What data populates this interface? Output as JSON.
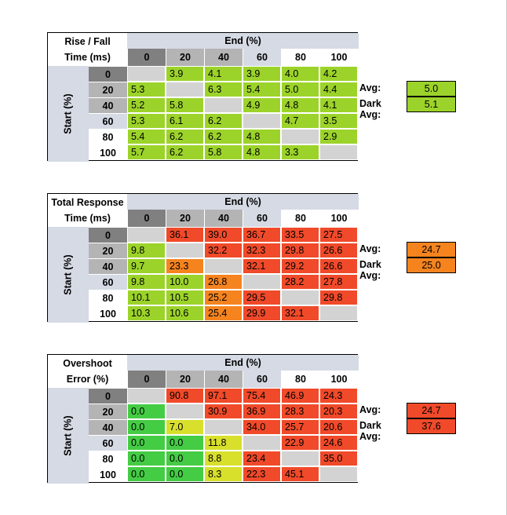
{
  "col_labels": [
    "0",
    "20",
    "40",
    "60",
    "80",
    "100"
  ],
  "row_labels": [
    "0",
    "20",
    "40",
    "60",
    "80",
    "100"
  ],
  "end_header": "End (%)",
  "start_header": "Start (%)",
  "avg_label": "Avg:",
  "dark_avg_label": "Dark Avg:",
  "colors": {
    "header_light": "#d5dae4",
    "header_dark": "#808080",
    "header_mid": "#b4b4b4",
    "diag": "#d3d3d3",
    "green_bright": "#44cc44",
    "green_lime": "#9cd32a",
    "yellow": "#d8e02c",
    "orange": "#f5841f",
    "red": "#f04a2a"
  },
  "tables": [
    {
      "title_line1": "Rise / Fall",
      "title_line2": "Time (ms)",
      "avg": "5.0",
      "dark_avg": "5.1",
      "avg_color": "#9cd32a",
      "rows": [
        [
          null,
          "3.9",
          "4.1",
          "3.9",
          "4.0",
          "4.2"
        ],
        [
          "5.3",
          null,
          "6.3",
          "5.4",
          "5.0",
          "4.4"
        ],
        [
          "5.2",
          "5.8",
          null,
          "4.9",
          "4.8",
          "4.1"
        ],
        [
          "5.3",
          "6.1",
          "6.2",
          null,
          "4.7",
          "3.5"
        ],
        [
          "5.4",
          "6.2",
          "6.2",
          "4.8",
          null,
          "2.9"
        ],
        [
          "5.7",
          "6.2",
          "5.8",
          "4.8",
          "3.3",
          null
        ]
      ],
      "colors": [
        [
          null,
          "#9cd32a",
          "#9cd32a",
          "#9cd32a",
          "#9cd32a",
          "#9cd32a"
        ],
        [
          "#9cd32a",
          null,
          "#9cd32a",
          "#9cd32a",
          "#9cd32a",
          "#9cd32a"
        ],
        [
          "#9cd32a",
          "#9cd32a",
          null,
          "#9cd32a",
          "#9cd32a",
          "#9cd32a"
        ],
        [
          "#9cd32a",
          "#9cd32a",
          "#9cd32a",
          null,
          "#9cd32a",
          "#9cd32a"
        ],
        [
          "#9cd32a",
          "#9cd32a",
          "#9cd32a",
          "#9cd32a",
          null,
          "#9cd32a"
        ],
        [
          "#9cd32a",
          "#9cd32a",
          "#9cd32a",
          "#9cd32a",
          "#9cd32a",
          null
        ]
      ]
    },
    {
      "title_line1": "Total Response",
      "title_line2": "Time (ms)",
      "avg": "24.7",
      "dark_avg": "25.0",
      "avg_color": "#f5841f",
      "rows": [
        [
          null,
          "36.1",
          "39.0",
          "36.7",
          "33.5",
          "27.5"
        ],
        [
          "9.8",
          null,
          "32.2",
          "32.3",
          "29.8",
          "26.6"
        ],
        [
          "9.7",
          "23.3",
          null,
          "32.1",
          "29.2",
          "26.6"
        ],
        [
          "9.8",
          "10.0",
          "26.8",
          null,
          "28.2",
          "27.8"
        ],
        [
          "10.1",
          "10.5",
          "25.2",
          "29.5",
          null,
          "29.8"
        ],
        [
          "10.3",
          "10.6",
          "25.4",
          "29.9",
          "32.1",
          null
        ]
      ],
      "colors": [
        [
          null,
          "#f04a2a",
          "#f04a2a",
          "#f04a2a",
          "#f04a2a",
          "#f04a2a"
        ],
        [
          "#9cd32a",
          null,
          "#f04a2a",
          "#f04a2a",
          "#f04a2a",
          "#f04a2a"
        ],
        [
          "#9cd32a",
          "#f5841f",
          null,
          "#f04a2a",
          "#f04a2a",
          "#f04a2a"
        ],
        [
          "#9cd32a",
          "#9cd32a",
          "#f5841f",
          null,
          "#f04a2a",
          "#f04a2a"
        ],
        [
          "#9cd32a",
          "#9cd32a",
          "#f5841f",
          "#f04a2a",
          null,
          "#f04a2a"
        ],
        [
          "#9cd32a",
          "#9cd32a",
          "#f5841f",
          "#f04a2a",
          "#f04a2a",
          null
        ]
      ]
    },
    {
      "title_line1": "Overshoot",
      "title_line2": "Error (%)",
      "avg": "24.7",
      "dark_avg": "37.6",
      "avg_color": "#f04a2a",
      "rows": [
        [
          null,
          "90.8",
          "97.1",
          "75.4",
          "46.9",
          "24.3"
        ],
        [
          "0.0",
          null,
          "30.9",
          "36.9",
          "28.3",
          "20.3"
        ],
        [
          "0.0",
          "7.0",
          null,
          "34.0",
          "25.7",
          "20.6"
        ],
        [
          "0.0",
          "0.0",
          "11.8",
          null,
          "22.9",
          "24.6"
        ],
        [
          "0.0",
          "0.0",
          "8.8",
          "23.4",
          null,
          "35.0"
        ],
        [
          "0.0",
          "0.0",
          "8.3",
          "22.3",
          "45.1",
          null
        ]
      ],
      "colors": [
        [
          null,
          "#f04a2a",
          "#f04a2a",
          "#f04a2a",
          "#f04a2a",
          "#f04a2a"
        ],
        [
          "#44cc44",
          null,
          "#f04a2a",
          "#f04a2a",
          "#f04a2a",
          "#f04a2a"
        ],
        [
          "#44cc44",
          "#d8e02c",
          null,
          "#f04a2a",
          "#f04a2a",
          "#f04a2a"
        ],
        [
          "#44cc44",
          "#44cc44",
          "#d8e02c",
          null,
          "#f04a2a",
          "#f04a2a"
        ],
        [
          "#44cc44",
          "#44cc44",
          "#d8e02c",
          "#f04a2a",
          null,
          "#f04a2a"
        ],
        [
          "#44cc44",
          "#44cc44",
          "#d8e02c",
          "#f04a2a",
          "#f04a2a",
          null
        ]
      ]
    }
  ]
}
